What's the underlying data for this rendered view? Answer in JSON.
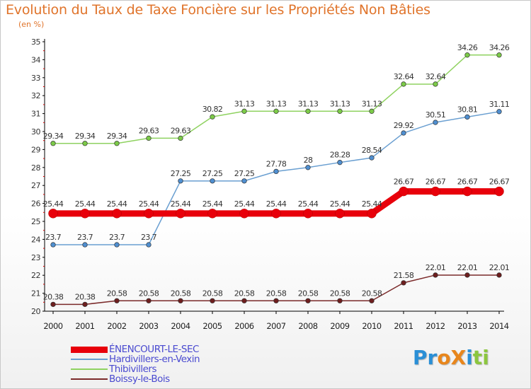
{
  "chart_data": {
    "type": "line",
    "title": "Evolution du Taux de Taxe Foncière sur les Propriétés Non Bâties",
    "ylabel": "(en %)",
    "xlabel": "",
    "categories": [
      "2000",
      "2001",
      "2002",
      "2003",
      "2004",
      "2005",
      "2006",
      "2007",
      "2008",
      "2009",
      "2010",
      "2011",
      "2012",
      "2013",
      "2014"
    ],
    "ylim": [
      20,
      35
    ],
    "yticks": [
      "20",
      "21",
      "22",
      "23",
      "24",
      "25",
      "26",
      "27",
      "28",
      "29",
      "30",
      "31",
      "32",
      "33",
      "34",
      "35"
    ],
    "legend_position": "bottom-left",
    "series": [
      {
        "name": "ÉNENCOURT-LE-SEC",
        "color": "#e8000b",
        "fill": "#e8000b",
        "emphasis": true,
        "values": [
          25.44,
          25.44,
          25.44,
          25.44,
          25.44,
          25.44,
          25.44,
          25.44,
          25.44,
          25.44,
          25.44,
          26.67,
          26.67,
          26.67,
          26.67
        ],
        "labels": [
          "25.44",
          "25.44",
          "25.44",
          "25.44",
          "25.44",
          "25.44",
          "25.44",
          "25.44",
          "25.44",
          "25.44",
          "25.44",
          "26.67",
          "26.67",
          "26.67",
          "26.67"
        ]
      },
      {
        "name": "Hardivillers-en-Vexin",
        "color": "#6a9fd1",
        "fill": "#4f8fd1",
        "emphasis": false,
        "values": [
          23.7,
          23.7,
          23.7,
          23.7,
          27.25,
          27.25,
          27.25,
          27.78,
          28,
          28.28,
          28.54,
          29.92,
          30.51,
          30.81,
          31.11
        ],
        "labels": [
          "23.7",
          "23.7",
          "23.7",
          "23.7",
          "27.25",
          "27.25",
          "27.25",
          "27.78",
          "28",
          "28.28",
          "28.54",
          "29.92",
          "30.51",
          "30.81",
          "31.11"
        ]
      },
      {
        "name": "Thibivillers",
        "color": "#8fd260",
        "fill": "#7ccb48",
        "emphasis": false,
        "values": [
          29.34,
          29.34,
          29.34,
          29.63,
          29.63,
          30.82,
          31.13,
          31.13,
          31.13,
          31.13,
          31.13,
          32.64,
          32.64,
          34.26,
          34.26
        ],
        "labels": [
          "29.34",
          "29.34",
          "29.34",
          "29.63",
          "29.63",
          "30.82",
          "31.13",
          "31.13",
          "31.13",
          "31.13",
          "31.13",
          "32.64",
          "32.64",
          "34.26",
          "34.26"
        ]
      },
      {
        "name": "Boissy-le-Bois",
        "color": "#7b2a2a",
        "fill": "#6e1e1e",
        "emphasis": false,
        "values": [
          20.38,
          20.38,
          20.58,
          20.58,
          20.58,
          20.58,
          20.58,
          20.58,
          20.58,
          20.58,
          20.58,
          21.58,
          22.01,
          22.01,
          22.01
        ],
        "labels": [
          "20.38",
          "20.38",
          "20.58",
          "20.58",
          "20.58",
          "20.58",
          "20.58",
          "20.58",
          "20.58",
          "20.58",
          "20.58",
          "21.58",
          "22.01",
          "22.01",
          "22.01"
        ]
      }
    ]
  },
  "legend_labels": [
    "ÉNENCOURT-LE-SEC",
    "Hardivillers-en-Vexin",
    "Thibivillers",
    "Boissy-le-Bois"
  ],
  "logo": {
    "text": "ProXiti",
    "letters": [
      "P",
      "r",
      "o",
      "X",
      "i",
      "t",
      "i"
    ],
    "colors": [
      "#2a8fd6",
      "#2a8fd6",
      "#e8861c",
      "#e8861c",
      "#2a8fd6",
      "#8cc63f",
      "#8cc63f"
    ]
  }
}
